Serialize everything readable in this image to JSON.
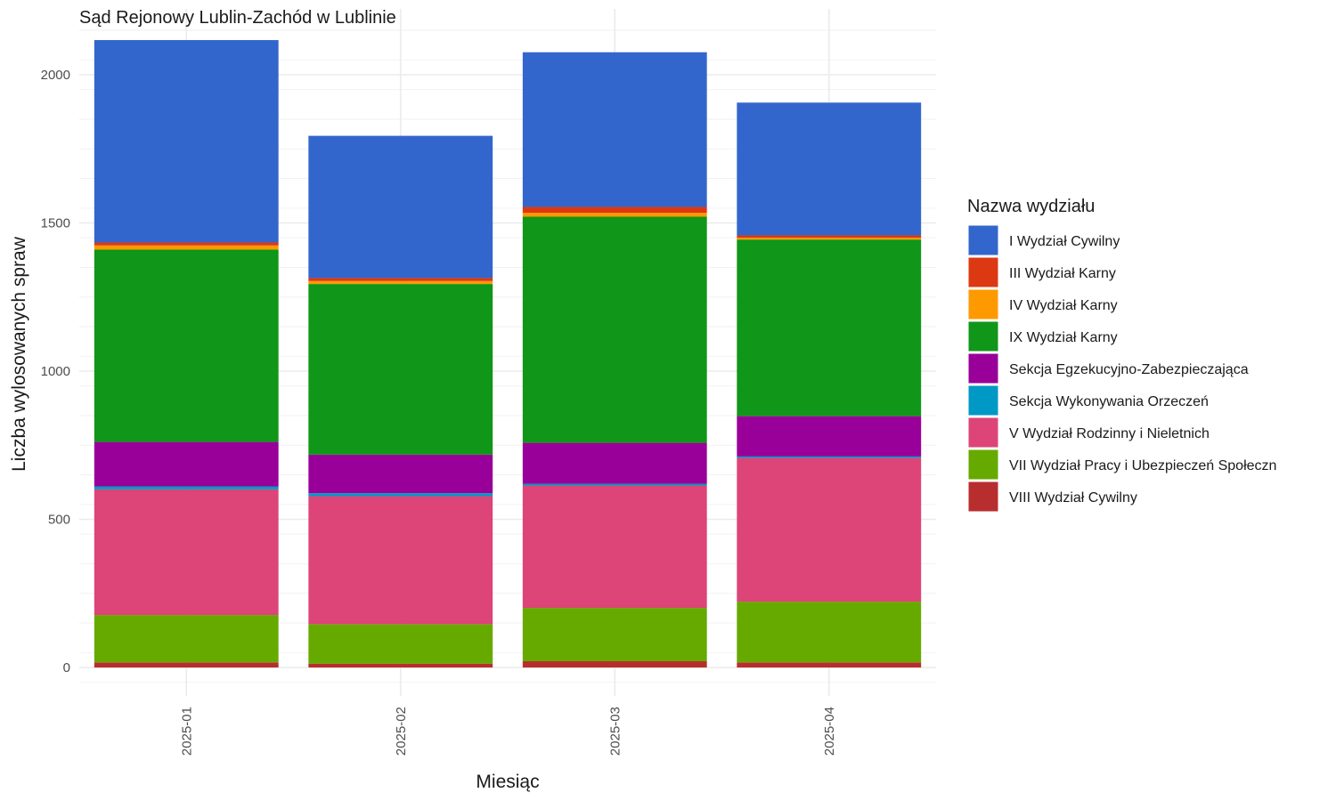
{
  "chart_data": {
    "type": "bar",
    "stacked": true,
    "title": "Sąd Rejonowy Lublin-Zachód w Lublinie",
    "xlabel": "Miesiąc",
    "ylabel": "Liczba wylosowanych spraw",
    "ylim": [
      -75,
      2150
    ],
    "yticks": [
      0,
      500,
      1000,
      1500,
      2000
    ],
    "grid": true,
    "legend": {
      "title": "Nazwa wydziału",
      "position": "right"
    },
    "categories": [
      "2025-01",
      "2025-02",
      "2025-03",
      "2025-04"
    ],
    "series": [
      {
        "name": "VIII Wydział Cywilny",
        "color": "#b82e2e",
        "values": [
          17,
          13,
          21,
          17
        ]
      },
      {
        "name": "VII Wydział Pracy i Ubezpieczeń Społeczn",
        "color": "#66aa00",
        "values": [
          160,
          133,
          180,
          205
        ]
      },
      {
        "name": "V Wydział Rodzinny i Nieletnich",
        "color": "#dd4477",
        "values": [
          424,
          432,
          413,
          485
        ]
      },
      {
        "name": "Sekcja Wykonywania Orzeczeń",
        "color": "#0099c6",
        "values": [
          10,
          10,
          6,
          5
        ]
      },
      {
        "name": "Sekcja Egzekucyjno-Zabezpieczająca",
        "color": "#990099",
        "values": [
          150,
          130,
          138,
          136
        ]
      },
      {
        "name": "IX Wydział Karny",
        "color": "#109618",
        "values": [
          649,
          576,
          763,
          596
        ]
      },
      {
        "name": "IV Wydział Karny",
        "color": "#ff9900",
        "values": [
          14,
          10,
          13,
          6
        ]
      },
      {
        "name": "III Wydział Karny",
        "color": "#dc3912",
        "values": [
          10,
          10,
          20,
          8
        ]
      },
      {
        "name": "I Wydział Cywilny",
        "color": "#3366cc",
        "values": [
          683,
          480,
          522,
          448
        ]
      }
    ],
    "legend_order": [
      "I Wydział Cywilny",
      "III Wydział Karny",
      "IV Wydział Karny",
      "IX Wydział Karny",
      "Sekcja Egzekucyjno-Zabezpieczająca",
      "Sekcja Wykonywania Orzeczeń",
      "V Wydział Rodzinny i Nieletnich",
      "VII Wydział Pracy i Ubezpieczeń Społeczn",
      "VIII Wydział Cywilny"
    ]
  }
}
